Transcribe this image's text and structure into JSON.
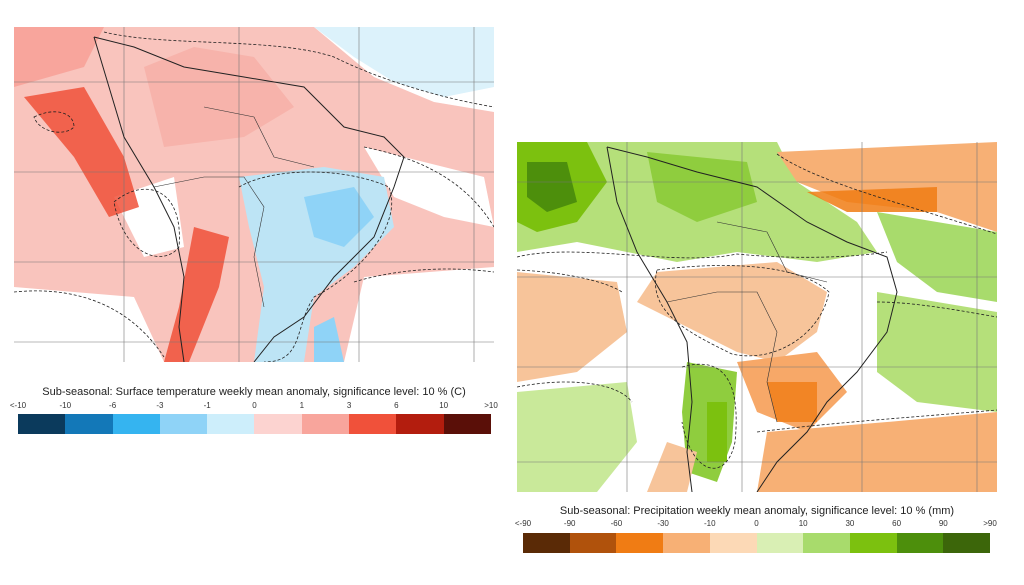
{
  "temperature": {
    "title": "Sub-seasonal: Surface temperature weekly mean anomaly, significance level: 10 % (C)",
    "ticks": [
      "<-10",
      "-10",
      "-6",
      "-3",
      "-1",
      "0",
      "1",
      "3",
      "6",
      "10",
      ">10"
    ],
    "colors": [
      "#0b3a5c",
      "#1378b8",
      "#35b4f0",
      "#8fd3f7",
      "#cdeefb",
      "#fcd3d0",
      "#f8a59c",
      "#f0513a",
      "#b31d0e",
      "#5a0f08"
    ]
  },
  "precipitation": {
    "title": "Sub-seasonal: Precipitation weekly mean anomaly, significance level: 10 % (mm)",
    "ticks": [
      "<-90",
      "-90",
      "-60",
      "-30",
      "-10",
      "0",
      "10",
      "30",
      "60",
      "90",
      ">90"
    ],
    "colors": [
      "#5a2a06",
      "#b0520c",
      "#f07c14",
      "#f7b075",
      "#fcd9b6",
      "#d9efb4",
      "#a8db6c",
      "#7cc10f",
      "#4d8f0c",
      "#3c660a"
    ]
  }
}
